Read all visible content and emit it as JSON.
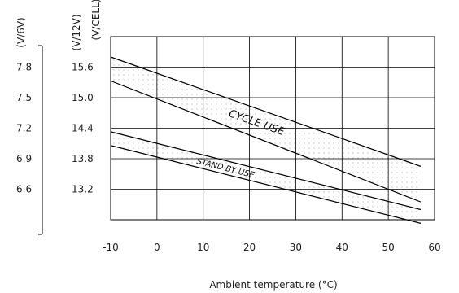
{
  "chart_data": {
    "type": "line",
    "xlabel": "Ambient temperature (°C)",
    "x_ticks": [
      -10,
      0,
      10,
      20,
      30,
      40,
      50,
      60
    ],
    "xlim": [
      -10,
      60
    ],
    "y_axes": [
      {
        "label": "(V/6V)",
        "ticks": [
          "7.8",
          "7.5",
          "7.2",
          "6.9",
          "6.6"
        ]
      },
      {
        "label": "(V/12V)",
        "ticks": [
          "15.6",
          "15.0",
          "14.4",
          "13.8",
          "13.2"
        ]
      },
      {
        "label": "(V/CELL)",
        "ticks": []
      }
    ],
    "ylim": [
      12.6,
      16.2
    ],
    "grid": true,
    "bands": [
      {
        "label": "CYCLE USE",
        "upper": {
          "x": [
            -10,
            57
          ],
          "y": [
            15.8,
            13.65
          ]
        },
        "lower": {
          "x": [
            -10,
            57
          ],
          "y": [
            15.33,
            12.95
          ]
        }
      },
      {
        "label": "STAND BY USE",
        "upper": {
          "x": [
            -10,
            57
          ],
          "y": [
            14.33,
            12.8
          ]
        },
        "lower": {
          "x": [
            -10,
            57
          ],
          "y": [
            14.06,
            12.53
          ]
        }
      }
    ]
  }
}
